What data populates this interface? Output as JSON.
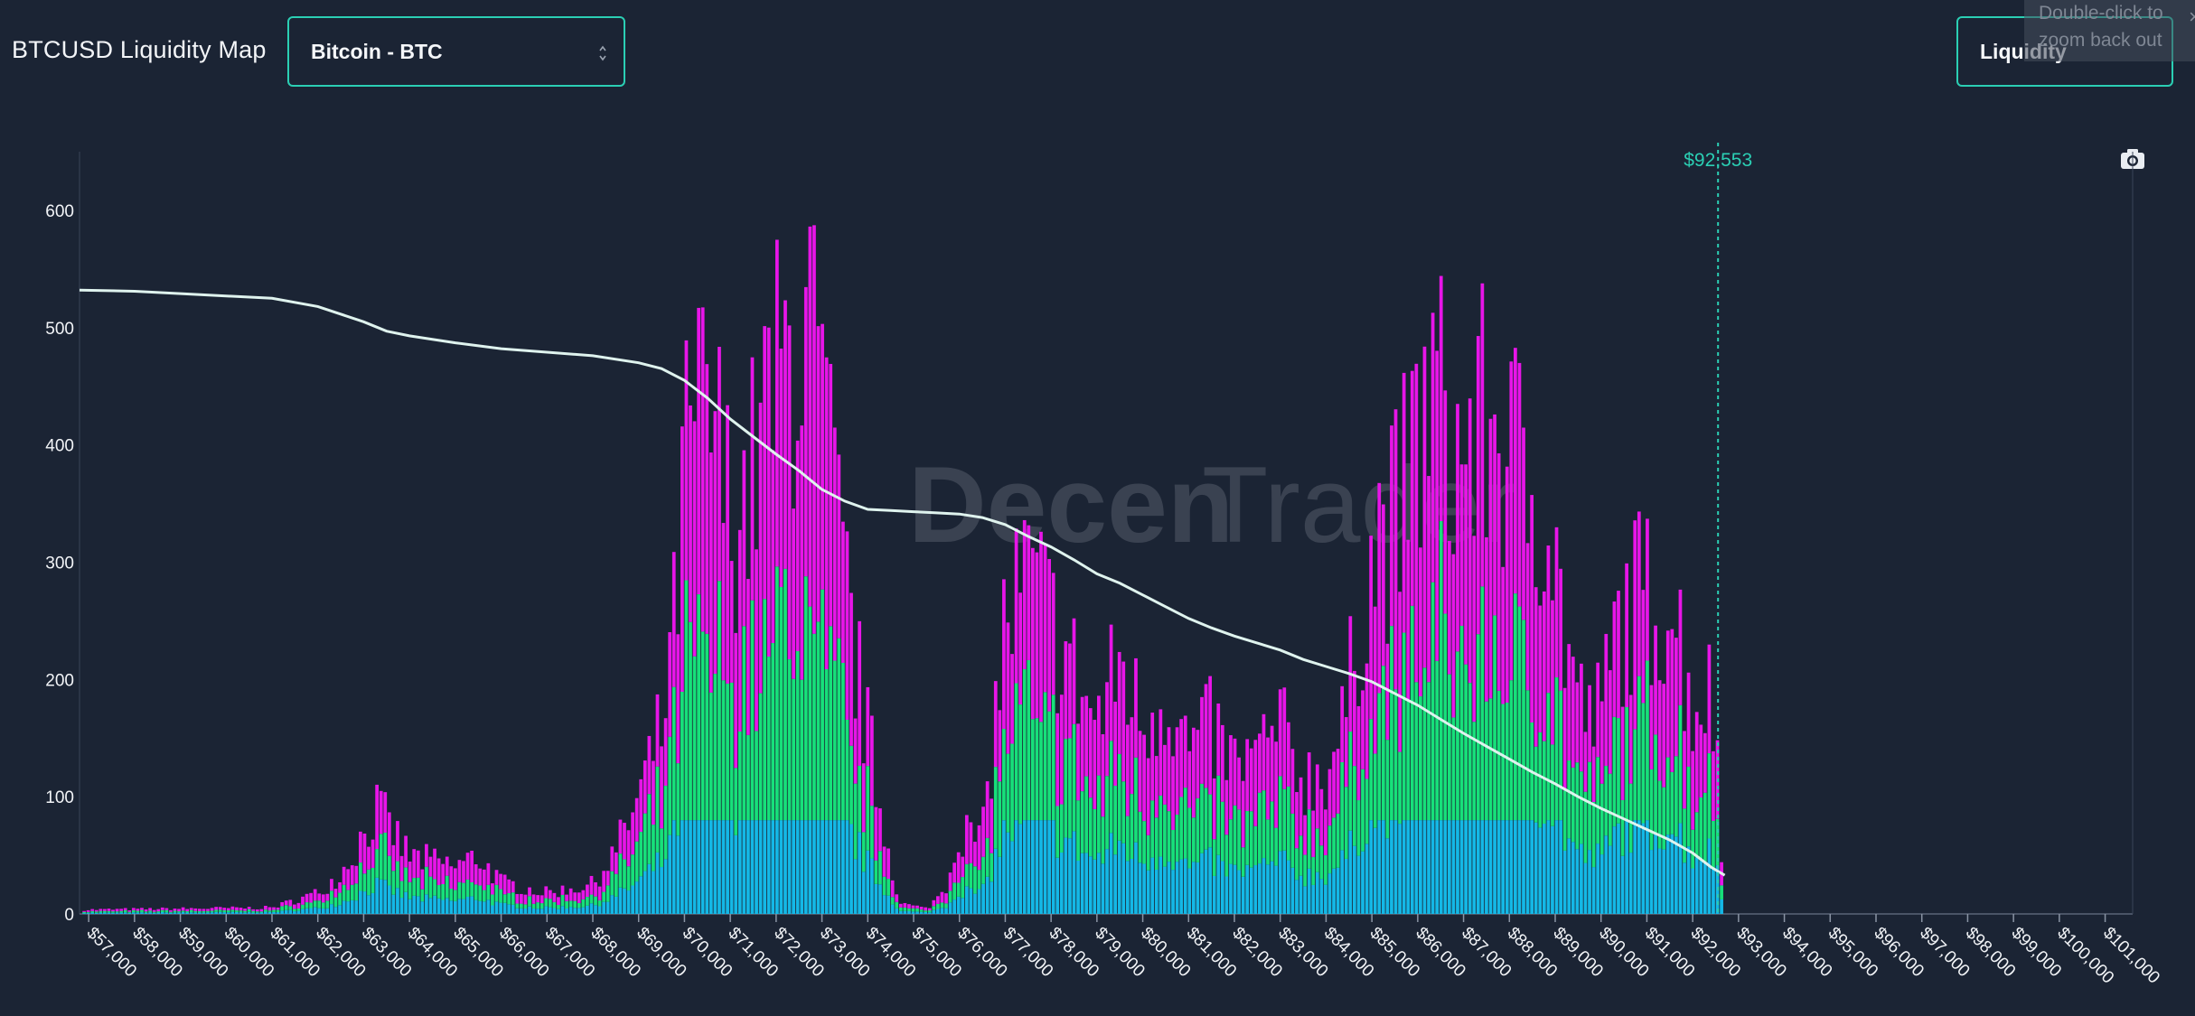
{
  "header": {
    "title": "BTCUSD Liquidity Map",
    "coin_select": "Bitcoin - BTC",
    "mode_select": "Liquidity"
  },
  "tooltip": {
    "line1": "Double-click to",
    "line2": "zoom back out",
    "close": "×"
  },
  "icons": [
    "camera-icon",
    "select-caret-icon",
    "close-icon"
  ],
  "colors": {
    "background": "#1b2434",
    "accent": "#2bcfb4",
    "magenta": "#e815e8",
    "green": "#17e07a",
    "cyan": "#14b8e6",
    "line": "#dff3ee"
  },
  "watermark": {
    "bold": "Decen",
    "light": "Trader"
  },
  "chart_data": {
    "type": "bar",
    "stacked": true,
    "x_unit": "USD",
    "xlim": [
      56800,
      101600
    ],
    "ylim": [
      0,
      650
    ],
    "yticks": [
      0,
      100,
      200,
      300,
      400,
      500,
      600
    ],
    "xticks": [
      {
        "value": 57000,
        "label": "$57,000"
      },
      {
        "value": 58000,
        "label": "$58,000"
      },
      {
        "value": 59000,
        "label": "$59,000"
      },
      {
        "value": 60000,
        "label": "$60,000"
      },
      {
        "value": 61000,
        "label": "$61,000"
      },
      {
        "value": 62000,
        "label": "$62,000"
      },
      {
        "value": 63000,
        "label": "$63,000"
      },
      {
        "value": 64000,
        "label": "$64,000"
      },
      {
        "value": 65000,
        "label": "$65,000"
      },
      {
        "value": 66000,
        "label": "$66,000"
      },
      {
        "value": 67000,
        "label": "$67,000"
      },
      {
        "value": 68000,
        "label": "$68,000"
      },
      {
        "value": 69000,
        "label": "$69,000"
      },
      {
        "value": 70000,
        "label": "$70,000"
      },
      {
        "value": 71000,
        "label": "$71,000"
      },
      {
        "value": 72000,
        "label": "$72,000"
      },
      {
        "value": 73000,
        "label": "$73,000"
      },
      {
        "value": 74000,
        "label": "$74,000"
      },
      {
        "value": 75000,
        "label": "$75,000"
      },
      {
        "value": 76000,
        "label": "$76,000"
      },
      {
        "value": 77000,
        "label": "$77,000"
      },
      {
        "value": 78000,
        "label": "$78,000"
      },
      {
        "value": 79000,
        "label": "$79,000"
      },
      {
        "value": 80000,
        "label": "$80,000"
      },
      {
        "value": 81000,
        "label": "$81,000"
      },
      {
        "value": 82000,
        "label": "$82,000"
      },
      {
        "value": 83000,
        "label": "$83,000"
      },
      {
        "value": 84000,
        "label": "$84,000"
      },
      {
        "value": 85000,
        "label": "$85,000"
      },
      {
        "value": 86000,
        "label": "$86,000"
      },
      {
        "value": 87000,
        "label": "$87,000"
      },
      {
        "value": 88000,
        "label": "$88,000"
      },
      {
        "value": 89000,
        "label": "$89,000"
      },
      {
        "value": 90000,
        "label": "$90,000"
      },
      {
        "value": 91000,
        "label": "$91,000"
      },
      {
        "value": 92000,
        "label": "$92,000"
      },
      {
        "value": 93000,
        "label": "$93,000"
      },
      {
        "value": 94000,
        "label": "$94,000"
      },
      {
        "value": 95000,
        "label": "$95,000"
      },
      {
        "value": 96000,
        "label": "$96,000"
      },
      {
        "value": 97000,
        "label": "$97,000"
      },
      {
        "value": 98000,
        "label": "$98,000"
      },
      {
        "value": 99000,
        "label": "$99,000"
      },
      {
        "value": 100000,
        "label": "$100,000"
      },
      {
        "value": 101000,
        "label": "$101,000"
      }
    ],
    "current_price": {
      "value": 92553,
      "label": "$92,553"
    },
    "bar_width": 90,
    "bar_x_range": [
      56900,
      92650
    ],
    "profile_points": [
      [
        56900,
        4
      ],
      [
        61000,
        6
      ],
      [
        62000,
        20
      ],
      [
        62500,
        38
      ],
      [
        63000,
        75
      ],
      [
        63300,
        100
      ],
      [
        64000,
        55
      ],
      [
        65000,
        45
      ],
      [
        65500,
        55
      ],
      [
        66000,
        30
      ],
      [
        67000,
        20
      ],
      [
        68000,
        28
      ],
      [
        68500,
        60
      ],
      [
        69000,
        110
      ],
      [
        69500,
        175
      ],
      [
        69800,
        280
      ],
      [
        70000,
        430
      ],
      [
        70300,
        470
      ],
      [
        70600,
        470
      ],
      [
        71000,
        380
      ],
      [
        71400,
        400
      ],
      [
        71800,
        480
      ],
      [
        72300,
        530
      ],
      [
        72700,
        560
      ],
      [
        73000,
        480
      ],
      [
        73300,
        380
      ],
      [
        73700,
        250
      ],
      [
        74000,
        170
      ],
      [
        74300,
        95
      ],
      [
        74700,
        10
      ],
      [
        75300,
        5
      ],
      [
        75700,
        25
      ],
      [
        76000,
        80
      ],
      [
        76500,
        70
      ],
      [
        77000,
        280
      ],
      [
        77500,
        320
      ],
      [
        78000,
        280
      ],
      [
        78500,
        230
      ],
      [
        79000,
        180
      ],
      [
        79500,
        240
      ],
      [
        80000,
        180
      ],
      [
        80500,
        215
      ],
      [
        81000,
        155
      ],
      [
        81500,
        175
      ],
      [
        82000,
        140
      ],
      [
        82500,
        150
      ],
      [
        83000,
        175
      ],
      [
        83500,
        130
      ],
      [
        84000,
        135
      ],
      [
        84400,
        180
      ],
      [
        84800,
        300
      ],
      [
        85200,
        360
      ],
      [
        85600,
        380
      ],
      [
        86000,
        450
      ],
      [
        86400,
        500
      ],
      [
        86800,
        430
      ],
      [
        87200,
        450
      ],
      [
        87600,
        470
      ],
      [
        88000,
        440
      ],
      [
        88400,
        410
      ],
      [
        88800,
        400
      ],
      [
        89200,
        270
      ],
      [
        89600,
        190
      ],
      [
        90000,
        190
      ],
      [
        90400,
        280
      ],
      [
        90800,
        300
      ],
      [
        91200,
        300
      ],
      [
        91600,
        290
      ],
      [
        92000,
        200
      ],
      [
        92300,
        215
      ],
      [
        92500,
        190
      ],
      [
        92650,
        30
      ]
    ],
    "stack_split": {
      "cyan_share_max": 80,
      "green_share": 0.5
    },
    "cumulative_line": [
      [
        56800,
        532
      ],
      [
        58000,
        531
      ],
      [
        59000,
        529
      ],
      [
        60000,
        527
      ],
      [
        61000,
        525
      ],
      [
        62000,
        518
      ],
      [
        63000,
        505
      ],
      [
        63500,
        497
      ],
      [
        64000,
        493
      ],
      [
        65000,
        487
      ],
      [
        66000,
        482
      ],
      [
        67000,
        479
      ],
      [
        68000,
        476
      ],
      [
        69000,
        470
      ],
      [
        69500,
        465
      ],
      [
        70000,
        455
      ],
      [
        70500,
        440
      ],
      [
        71000,
        422
      ],
      [
        71500,
        407
      ],
      [
        72000,
        392
      ],
      [
        72500,
        378
      ],
      [
        73000,
        362
      ],
      [
        73500,
        352
      ],
      [
        74000,
        345
      ],
      [
        74500,
        344
      ],
      [
        75000,
        343
      ],
      [
        75500,
        342
      ],
      [
        76000,
        341
      ],
      [
        76500,
        338
      ],
      [
        77000,
        332
      ],
      [
        77500,
        322
      ],
      [
        78000,
        313
      ],
      [
        78500,
        302
      ],
      [
        79000,
        290
      ],
      [
        79500,
        282
      ],
      [
        80000,
        272
      ],
      [
        80500,
        262
      ],
      [
        81000,
        252
      ],
      [
        81500,
        244
      ],
      [
        82000,
        237
      ],
      [
        82500,
        231
      ],
      [
        83000,
        225
      ],
      [
        83500,
        217
      ],
      [
        84000,
        211
      ],
      [
        84500,
        205
      ],
      [
        85000,
        198
      ],
      [
        85500,
        188
      ],
      [
        86000,
        178
      ],
      [
        86500,
        166
      ],
      [
        87000,
        154
      ],
      [
        87500,
        143
      ],
      [
        88000,
        132
      ],
      [
        88500,
        121
      ],
      [
        89000,
        111
      ],
      [
        89500,
        100
      ],
      [
        90000,
        90
      ],
      [
        90500,
        81
      ],
      [
        91000,
        72
      ],
      [
        91500,
        63
      ],
      [
        92000,
        52
      ],
      [
        92400,
        40
      ],
      [
        92700,
        33
      ]
    ],
    "title": "BTCUSD Liquidity Map",
    "grid": false,
    "legend": "none"
  }
}
